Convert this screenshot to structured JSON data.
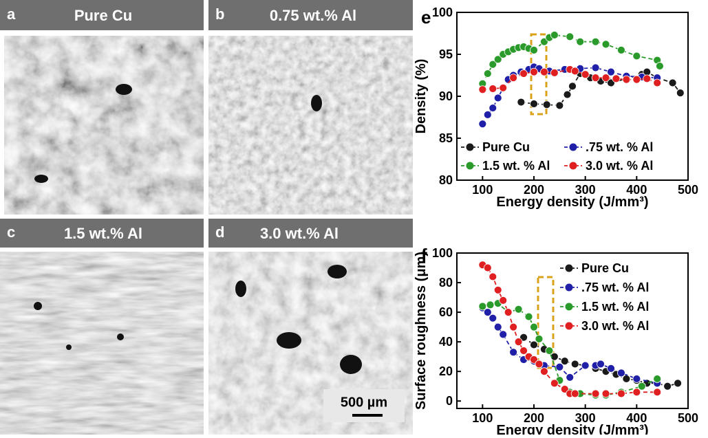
{
  "panels": [
    {
      "letter": "a",
      "title": "Pure Cu"
    },
    {
      "letter": "b",
      "title": "0.75 wt.% Al"
    },
    {
      "letter": "c",
      "title": "1.5 wt.% Al"
    },
    {
      "letter": "d",
      "title": "3.0 wt.% Al"
    }
  ],
  "scale_bar": "500 µm",
  "chart_data": [
    {
      "type": "line",
      "panel": "e",
      "xlabel": "Energy density (J/mm³)",
      "ylabel": "Density (%)",
      "xlim": [
        50,
        500
      ],
      "xticks": [
        100,
        200,
        300,
        400,
        500
      ],
      "ylim": [
        80,
        100
      ],
      "yticks": [
        80,
        85,
        90,
        95,
        100
      ],
      "legend": "lower center",
      "series": [
        {
          "name": "Pure Cu",
          "color": "#1a1a1a",
          "x": [
            175,
            200,
            225,
            250,
            265,
            275,
            290,
            310,
            330,
            350,
            380,
            410,
            420,
            440,
            470,
            485
          ],
          "values": [
            89.3,
            89.1,
            89.0,
            88.9,
            90.2,
            91.2,
            92.7,
            92.2,
            91.8,
            91.6,
            92.1,
            92.6,
            92.9,
            92.2,
            91.6,
            90.4
          ]
        },
        {
          "name": ".75 wt. % Al",
          "color": "#1f1fa8",
          "x": [
            100,
            110,
            120,
            130,
            140,
            150,
            160,
            175,
            190,
            200,
            210,
            230,
            260,
            290,
            320,
            350,
            380,
            410,
            440
          ],
          "values": [
            86.7,
            87.8,
            88.6,
            89.8,
            91.0,
            92.0,
            92.5,
            92.9,
            93.2,
            93.5,
            93.3,
            93.0,
            93.2,
            93.3,
            93.4,
            92.9,
            92.4,
            92.3,
            92.2
          ]
        },
        {
          "name": "1.5 wt. % Al",
          "color": "#2a9a2a",
          "x": [
            100,
            110,
            120,
            130,
            140,
            150,
            160,
            170,
            180,
            190,
            200,
            220,
            230,
            240,
            270,
            290,
            320,
            340,
            370,
            400,
            440,
            445
          ],
          "values": [
            91.5,
            92.7,
            93.8,
            94.4,
            95.0,
            95.3,
            95.6,
            95.8,
            95.9,
            95.7,
            95.5,
            96.5,
            97.0,
            97.3,
            97.1,
            96.5,
            96.5,
            96.2,
            95.5,
            94.8,
            94.3,
            93.6
          ]
        },
        {
          "name": "3.0 wt. % Al",
          "color": "#e02020",
          "x": [
            100,
            120,
            140,
            160,
            180,
            200,
            220,
            240,
            270,
            280,
            300,
            320,
            340,
            360,
            380,
            400,
            420,
            440
          ],
          "values": [
            90.8,
            90.9,
            91.0,
            92.2,
            92.7,
            92.9,
            92.9,
            92.8,
            93.2,
            93.0,
            92.6,
            92.2,
            92.2,
            92.1,
            92.0,
            92.0,
            92.1,
            91.6
          ]
        }
      ]
    },
    {
      "type": "line",
      "panel": "f",
      "xlabel": "Energy density (J/mm³)",
      "ylabel": "Surface roughness (μm)",
      "xlim": [
        50,
        500
      ],
      "xticks": [
        100,
        200,
        300,
        400,
        500
      ],
      "ylim": [
        -5,
        100
      ],
      "yticks": [
        0,
        20,
        40,
        60,
        80,
        100
      ],
      "legend": "upper right",
      "series": [
        {
          "name": "Pure Cu",
          "color": "#1a1a1a",
          "x": [
            180,
            200,
            220,
            240,
            260,
            280,
            300,
            320,
            340,
            360,
            380,
            400,
            420,
            440,
            460,
            480
          ],
          "values": [
            43,
            38,
            35,
            30,
            27,
            25,
            24,
            22,
            20,
            18,
            15,
            14,
            12,
            12,
            10,
            12
          ]
        },
        {
          "name": ".75 wt. % Al",
          "color": "#1f1fa8",
          "x": [
            100,
            110,
            120,
            130,
            140,
            160,
            180,
            200,
            220,
            250,
            270,
            300,
            320,
            330,
            350,
            370,
            400,
            440
          ],
          "values": [
            63,
            60,
            56,
            50,
            45,
            33,
            28,
            27,
            24,
            23,
            16,
            24,
            24,
            25,
            22,
            19,
            15,
            12
          ]
        },
        {
          "name": "1.5 wt. % Al",
          "color": "#2a9a2a",
          "x": [
            100,
            115,
            130,
            150,
            170,
            190,
            200,
            210,
            230,
            250,
            270,
            290,
            320,
            340,
            370,
            410,
            440
          ],
          "values": [
            64,
            65,
            66,
            60,
            62,
            57,
            50,
            42,
            34,
            14,
            6,
            5,
            4,
            4,
            6,
            10,
            15
          ]
        },
        {
          "name": "3.0 wt. % Al",
          "color": "#e02020",
          "x": [
            100,
            110,
            120,
            130,
            140,
            150,
            160,
            170,
            180,
            190,
            200,
            210,
            220,
            240,
            260,
            270,
            280,
            320,
            340,
            370,
            400,
            440
          ],
          "values": [
            92,
            90,
            84,
            75,
            68,
            60,
            50,
            40,
            34,
            30,
            28,
            25,
            20,
            12,
            8,
            5,
            5,
            5,
            5,
            5,
            6,
            6
          ]
        }
      ]
    }
  ]
}
